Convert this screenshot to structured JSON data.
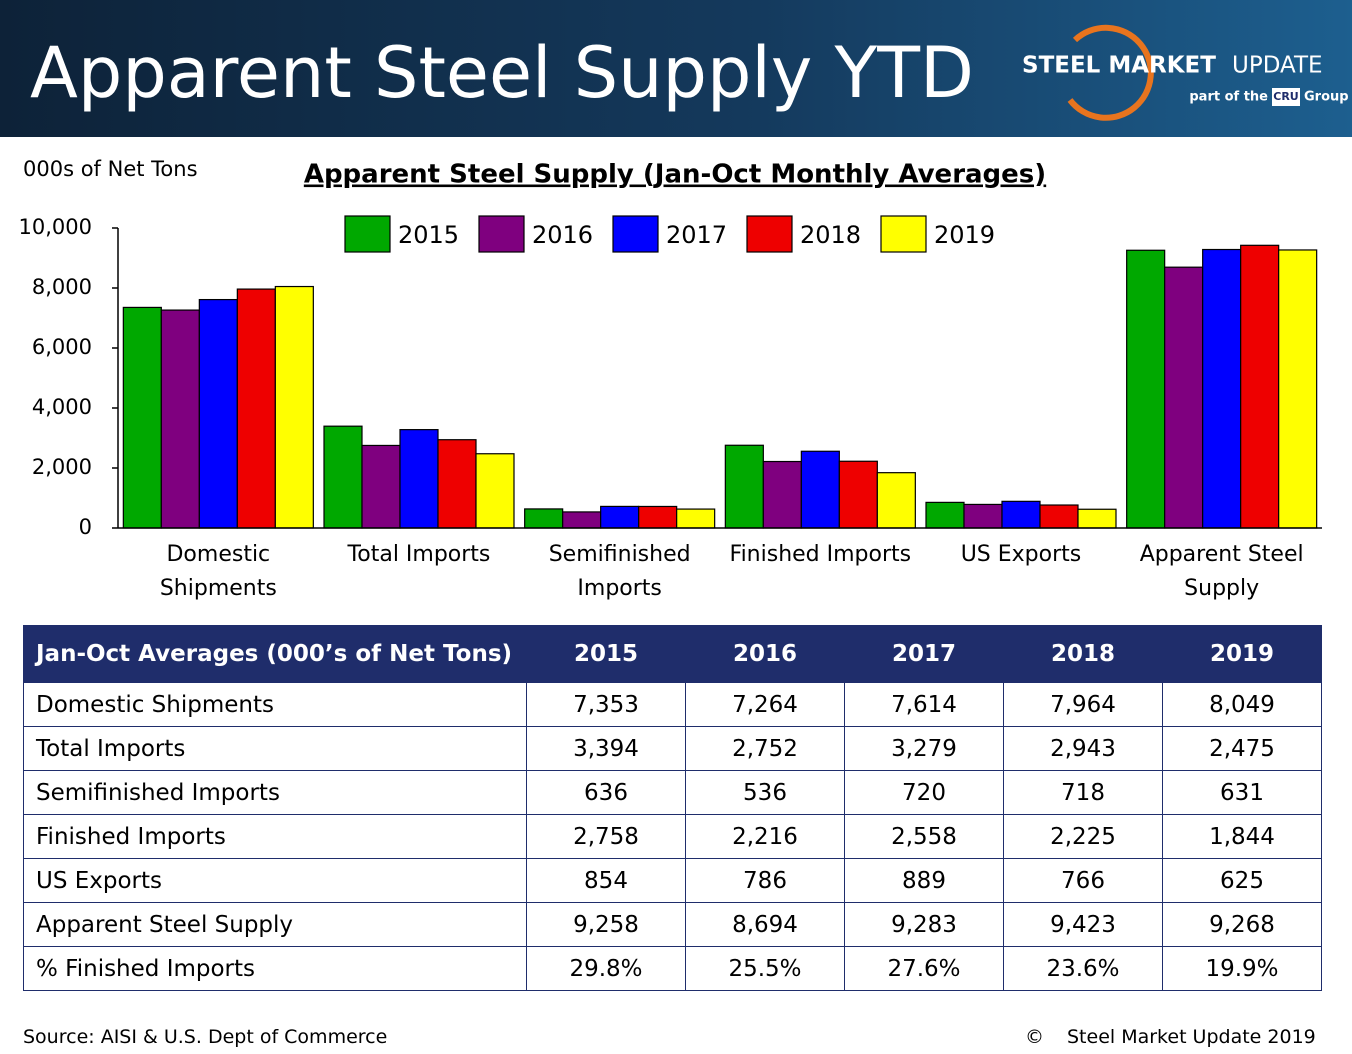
{
  "header": {
    "title": "Apparent Steel Supply YTD",
    "logo_bold": "STEEL MARKET",
    "logo_light": "UPDATE",
    "logo_sub_a": "part of the",
    "logo_sub_b": "CRU",
    "logo_sub_c": "Group"
  },
  "chart_data": {
    "type": "bar",
    "title": "Apparent Steel Supply (Jan-Oct Monthly Averages)",
    "y_label": "000s of Net Tons",
    "categories": [
      "Domestic Shipments",
      "Total Imports",
      "Semifinished Imports",
      "Finished Imports",
      "US Exports",
      "Apparent Steel Supply"
    ],
    "series": [
      {
        "name": "2015",
        "color": "#00a800",
        "values": [
          7353,
          3394,
          636,
          2758,
          854,
          9258
        ]
      },
      {
        "name": "2016",
        "color": "#7f007f",
        "values": [
          7264,
          2752,
          536,
          2216,
          786,
          8694
        ]
      },
      {
        "name": "2017",
        "color": "#0000ff",
        "values": [
          7614,
          3279,
          720,
          2558,
          889,
          9283
        ]
      },
      {
        "name": "2018",
        "color": "#ee0000",
        "values": [
          7964,
          2943,
          718,
          2225,
          766,
          9423
        ]
      },
      {
        "name": "2019",
        "color": "#ffff00",
        "values": [
          8049,
          2475,
          631,
          1844,
          625,
          9268
        ]
      }
    ],
    "ylim": [
      0,
      10000
    ],
    "yticks": [
      0,
      {
        "value": 2000,
        "label": "2,000"
      },
      {
        "value": 4000,
        "label": "4,000"
      },
      {
        "value": 6000,
        "label": "6,000"
      },
      {
        "value": 8000,
        "label": "8,000"
      },
      {
        "value": 10000,
        "label": "10,000"
      }
    ],
    "legend": "top"
  },
  "table": {
    "header": [
      "Jan-Oct Averages (000’s of Net Tons)",
      "2015",
      "2016",
      "2017",
      "2018",
      "2019"
    ],
    "rows": [
      [
        "Domestic Shipments",
        "7,353",
        "7,264",
        "7,614",
        "7,964",
        "8,049"
      ],
      [
        "Total Imports",
        "3,394",
        "2,752",
        "3,279",
        "2,943",
        "2,475"
      ],
      [
        "Semifinished Imports",
        "636",
        "536",
        "720",
        "718",
        "631"
      ],
      [
        "Finished Imports",
        "2,758",
        "2,216",
        "2,558",
        "2,225",
        "1,844"
      ],
      [
        "US Exports",
        "854",
        "786",
        "889",
        "766",
        "625"
      ],
      [
        "Apparent Steel Supply",
        "9,258",
        "8,694",
        "9,283",
        "9,423",
        "9,268"
      ],
      [
        "% Finished Imports",
        "29.8%",
        "25.5%",
        "27.6%",
        "23.6%",
        "19.9%"
      ]
    ]
  },
  "footer": {
    "source": "Source:  AISI & U.S. Dept of Commerce",
    "copyright": "©",
    "credit": "Steel Market Update 2019"
  }
}
